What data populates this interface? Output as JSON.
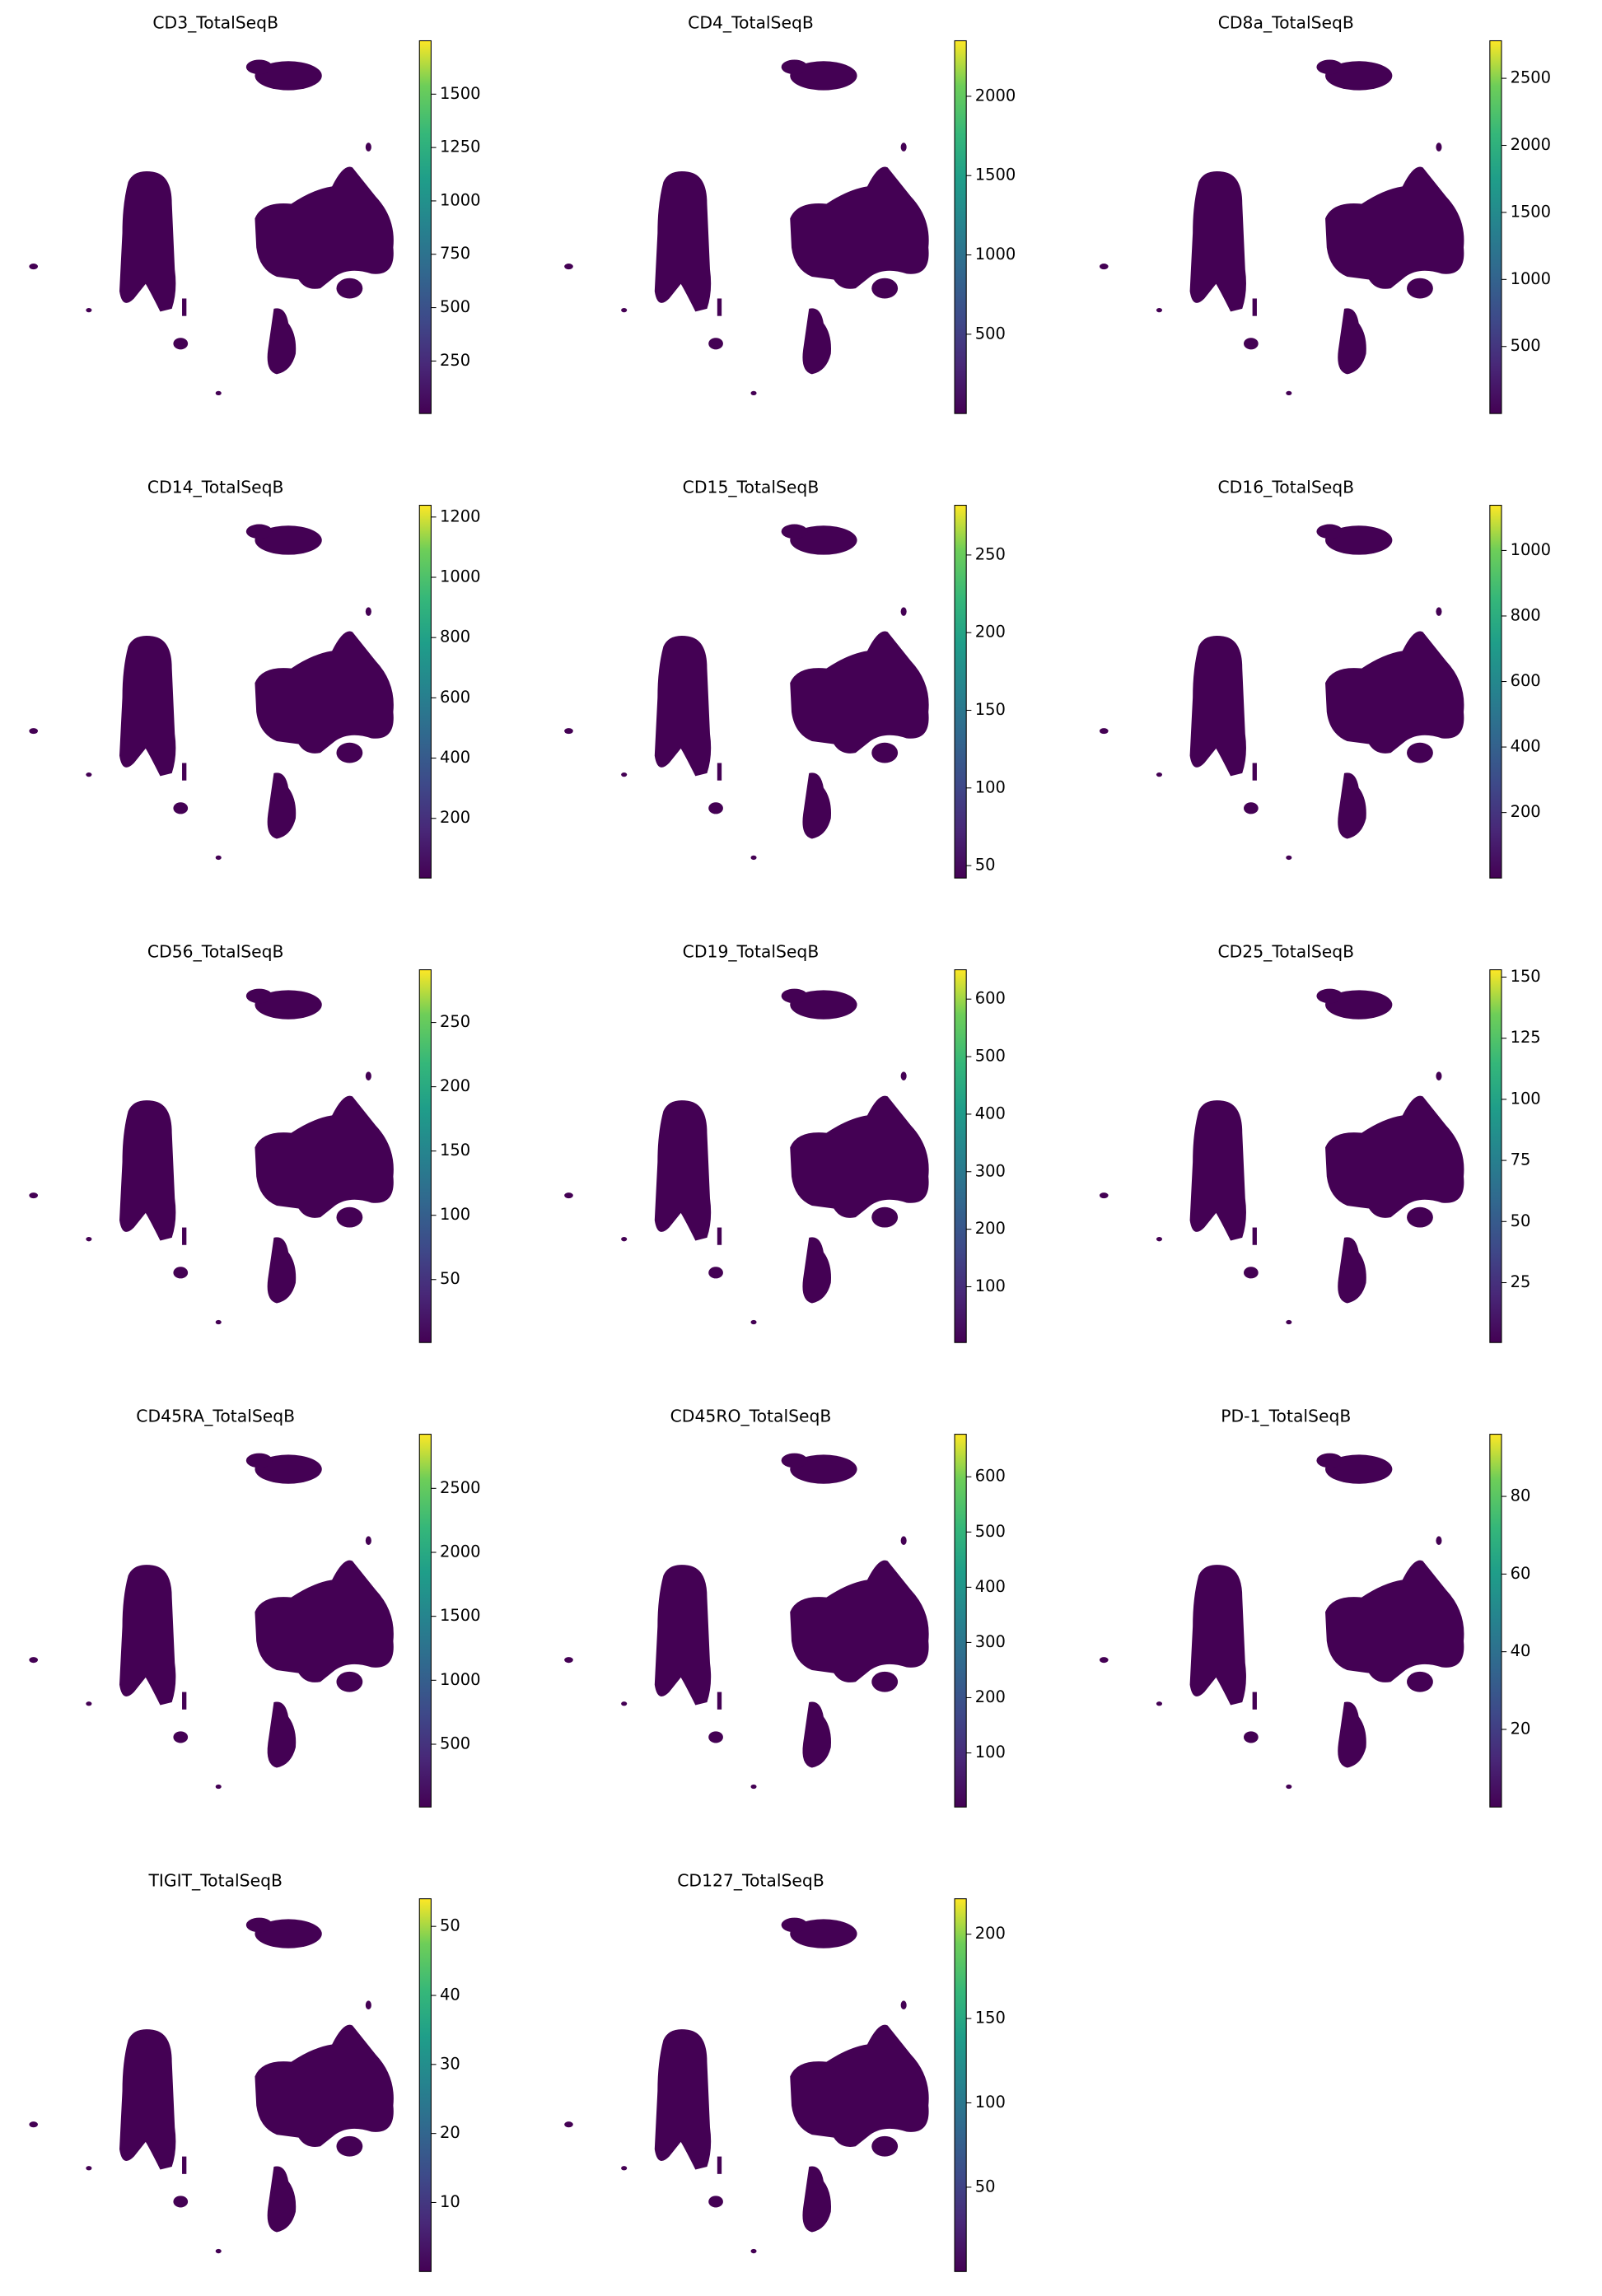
{
  "chart_data": [
    {
      "type": "scatter",
      "title": "CD3_TotalSeqB",
      "colormap": "viridis",
      "clim": [
        4,
        1750
      ],
      "cticks": [
        250,
        500,
        750,
        1000,
        1250,
        1500
      ]
    },
    {
      "type": "scatter",
      "title": "CD4_TotalSeqB",
      "colormap": "viridis",
      "clim": [
        0,
        2350
      ],
      "cticks": [
        500,
        1000,
        1500,
        2000
      ]
    },
    {
      "type": "scatter",
      "title": "CD8a_TotalSeqB",
      "colormap": "viridis",
      "clim": [
        0,
        2780
      ],
      "cticks": [
        500,
        1000,
        1500,
        2000,
        2500
      ]
    },
    {
      "type": "scatter",
      "title": "CD14_TotalSeqB",
      "colormap": "viridis",
      "clim": [
        2,
        1239
      ],
      "cticks": [
        200,
        400,
        600,
        800,
        1000,
        1200
      ]
    },
    {
      "type": "scatter",
      "title": "CD15_TotalSeqB",
      "colormap": "viridis",
      "clim": [
        42,
        282
      ],
      "cticks": [
        50,
        100,
        150,
        200,
        250
      ]
    },
    {
      "type": "scatter",
      "title": "CD16_TotalSeqB",
      "colormap": "viridis",
      "clim": [
        0,
        1138
      ],
      "cticks": [
        200,
        400,
        600,
        800,
        1000
      ]
    },
    {
      "type": "scatter",
      "title": "CD56_TotalSeqB",
      "colormap": "viridis",
      "clim": [
        1,
        291
      ],
      "cticks": [
        50,
        100,
        150,
        200,
        250
      ]
    },
    {
      "type": "scatter",
      "title": "CD19_TotalSeqB",
      "colormap": "viridis",
      "clim": [
        3,
        651
      ],
      "cticks": [
        100,
        200,
        300,
        400,
        500,
        600
      ]
    },
    {
      "type": "scatter",
      "title": "CD25_TotalSeqB",
      "colormap": "viridis",
      "clim": [
        0.5,
        153
      ],
      "cticks": [
        25,
        50,
        75,
        100,
        125,
        150
      ]
    },
    {
      "type": "scatter",
      "title": "CD45RA_TotalSeqB",
      "colormap": "viridis",
      "clim": [
        9,
        2923
      ],
      "cticks": [
        500,
        1000,
        1500,
        2000,
        2500
      ]
    },
    {
      "type": "scatter",
      "title": "CD45RO_TotalSeqB",
      "colormap": "viridis",
      "clim": [
        2,
        677
      ],
      "cticks": [
        100,
        200,
        300,
        400,
        500,
        600
      ]
    },
    {
      "type": "scatter",
      "title": "PD-1_TotalSeqB",
      "colormap": "viridis",
      "clim": [
        0,
        96
      ],
      "cticks": [
        20,
        40,
        60,
        80
      ]
    },
    {
      "type": "scatter",
      "title": "TIGIT_TotalSeqB",
      "colormap": "viridis",
      "clim": [
        0,
        54
      ],
      "cticks": [
        10,
        20,
        30,
        40,
        50
      ]
    },
    {
      "type": "scatter",
      "title": "CD127_TotalSeqB",
      "colormap": "viridis",
      "clim": [
        0,
        221
      ],
      "cticks": [
        50,
        100,
        150,
        200
      ]
    }
  ]
}
